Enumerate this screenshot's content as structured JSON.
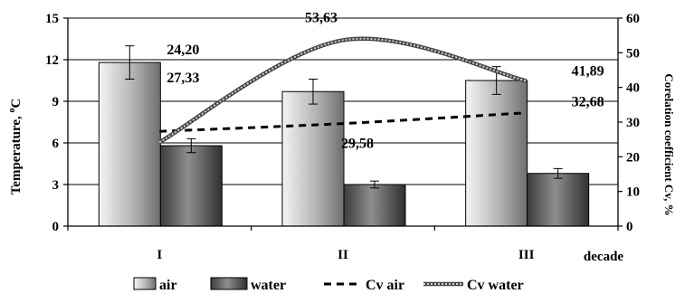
{
  "chart_data": {
    "type": "bar",
    "categories": [
      "I",
      "II",
      "III"
    ],
    "xlabel": "decade",
    "ylabel": "Temperature, °C",
    "ylabel_base": "Temperature, ",
    "ylabel_sup": "o",
    "ylabel_end": "C",
    "y2label": "Corelation coefficient Cv, %",
    "ylim": [
      0,
      15
    ],
    "yticks": [
      "0",
      "3",
      "6",
      "9",
      "12",
      "15"
    ],
    "y2lim": [
      0,
      60
    ],
    "y2ticks": [
      "0",
      "10",
      "20",
      "30",
      "40",
      "50",
      "60"
    ],
    "grid": true,
    "legend_position": "bottom",
    "series": [
      {
        "name": "air",
        "type": "bar",
        "axis": "left",
        "values": [
          11.8,
          9.7,
          10.5
        ],
        "errors": [
          1.2,
          0.9,
          1.0
        ],
        "color": "#9a9a9a"
      },
      {
        "name": "water",
        "type": "bar",
        "axis": "left",
        "values": [
          5.8,
          3.0,
          3.8
        ],
        "errors": [
          0.5,
          0.25,
          0.35
        ],
        "color": "#555555"
      },
      {
        "name": "Cv air",
        "type": "line",
        "axis": "right",
        "style": "dashed",
        "values": [
          27.33,
          29.58,
          32.68
        ],
        "color": "#000000"
      },
      {
        "name": "Cv water",
        "type": "line",
        "axis": "right",
        "style": "smooth",
        "values": [
          24.2,
          53.63,
          41.89
        ],
        "color": "#666666"
      }
    ],
    "data_labels": [
      "27,33",
      "24,20",
      "53,63",
      "29,58",
      "41,89",
      "32,68"
    ]
  }
}
